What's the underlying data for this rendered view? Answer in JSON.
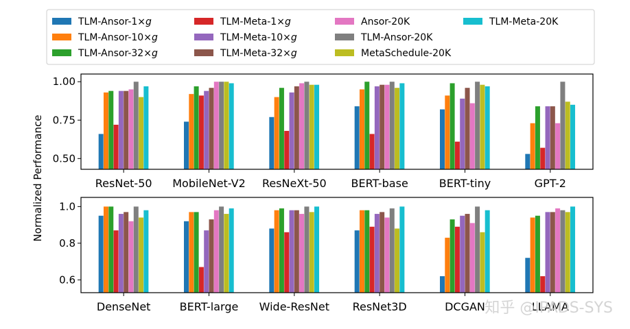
{
  "ylabel": "Normalized Performance",
  "watermark": "知乎 @IPADS-SYS",
  "colors": {
    "TLM-Ansor-1×g": "#1f77b4",
    "TLM-Ansor-10×g": "#ff7f0e",
    "TLM-Ansor-32×g": "#2ca02c",
    "TLM-Meta-1×g": "#d62728",
    "TLM-Meta-10×g": "#9467bd",
    "TLM-Meta-32×g": "#8c564b",
    "Ansor-20K": "#e377c2",
    "TLM-Ansor-20K": "#7f7f7f",
    "MetaSchedule-20K": "#bcbd22",
    "TLM-Meta-20K": "#17becf"
  },
  "legend": [
    {
      "prefix": "TLM-Ansor-1×",
      "italic": "g",
      "key": "TLM-Ansor-1×g"
    },
    {
      "prefix": "TLM-Ansor-10×",
      "italic": "g",
      "key": "TLM-Ansor-10×g"
    },
    {
      "prefix": "TLM-Ansor-32×",
      "italic": "g",
      "key": "TLM-Ansor-32×g"
    },
    {
      "prefix": "TLM-Meta-1×",
      "italic": "g",
      "key": "TLM-Meta-1×g"
    },
    {
      "prefix": "TLM-Meta-10×",
      "italic": "g",
      "key": "TLM-Meta-10×g"
    },
    {
      "prefix": "TLM-Meta-32×",
      "italic": "g",
      "key": "TLM-Meta-32×g"
    },
    {
      "prefix": "Ansor-20K",
      "italic": "",
      "key": "Ansor-20K"
    },
    {
      "prefix": "TLM-Ansor-20K",
      "italic": "",
      "key": "TLM-Ansor-20K"
    },
    {
      "prefix": "MetaSchedule-20K",
      "italic": "",
      "key": "MetaSchedule-20K"
    },
    {
      "prefix": "TLM-Meta-20K",
      "italic": "",
      "key": "TLM-Meta-20K"
    }
  ],
  "chart_data": [
    {
      "type": "bar",
      "title": "",
      "xlabel": "",
      "ylabel": "Normalized Performance",
      "ylim": [
        0.43,
        1.05
      ],
      "yticks": [
        0.5,
        0.75,
        1.0
      ],
      "ytick_labels": [
        "0.50",
        "0.75",
        "1.00"
      ],
      "categories": [
        "ResNet-50",
        "MobileNet-V2",
        "ResNeXt-50",
        "BERT-base",
        "BERT-tiny",
        "GPT-2"
      ],
      "series": [
        {
          "name": "TLM-Ansor-1×g",
          "values": [
            0.66,
            0.74,
            0.77,
            0.84,
            0.82,
            0.53
          ]
        },
        {
          "name": "TLM-Ansor-10×g",
          "values": [
            0.93,
            0.92,
            0.9,
            0.95,
            0.91,
            0.73
          ]
        },
        {
          "name": "TLM-Ansor-32×g",
          "values": [
            0.94,
            0.97,
            0.96,
            1.0,
            0.99,
            0.84
          ]
        },
        {
          "name": "TLM-Meta-1×g",
          "values": [
            0.72,
            0.91,
            0.68,
            0.66,
            0.61,
            0.57
          ]
        },
        {
          "name": "TLM-Meta-10×g",
          "values": [
            0.94,
            0.94,
            0.93,
            0.97,
            0.89,
            0.84
          ]
        },
        {
          "name": "TLM-Meta-32×g",
          "values": [
            0.94,
            0.96,
            0.97,
            0.98,
            0.96,
            0.84
          ]
        },
        {
          "name": "Ansor-20K",
          "values": [
            0.95,
            1.0,
            0.99,
            0.98,
            0.86,
            0.73
          ]
        },
        {
          "name": "TLM-Ansor-20K",
          "values": [
            1.0,
            1.0,
            1.0,
            1.0,
            1.0,
            1.0
          ]
        },
        {
          "name": "MetaSchedule-20K",
          "values": [
            0.9,
            1.0,
            0.98,
            0.96,
            0.98,
            0.87
          ]
        },
        {
          "name": "TLM-Meta-20K",
          "values": [
            0.97,
            0.99,
            0.98,
            0.99,
            0.97,
            0.85
          ]
        }
      ]
    },
    {
      "type": "bar",
      "title": "",
      "xlabel": "",
      "ylabel": "Normalized Performance",
      "ylim": [
        0.53,
        1.05
      ],
      "yticks": [
        0.6,
        0.8,
        1.0
      ],
      "ytick_labels": [
        "0.6",
        "0.8",
        "1.0"
      ],
      "categories": [
        "DenseNet",
        "BERT-large",
        "Wide-ResNet",
        "ResNet3D",
        "DCGAN",
        "LLAMA"
      ],
      "series": [
        {
          "name": "TLM-Ansor-1×g",
          "values": [
            0.95,
            0.92,
            0.88,
            0.87,
            0.62,
            0.72
          ]
        },
        {
          "name": "TLM-Ansor-10×g",
          "values": [
            1.0,
            0.97,
            0.98,
            0.98,
            0.83,
            0.94
          ]
        },
        {
          "name": "TLM-Ansor-32×g",
          "values": [
            1.0,
            0.97,
            0.99,
            0.98,
            0.93,
            0.95
          ]
        },
        {
          "name": "TLM-Meta-1×g",
          "values": [
            0.87,
            0.67,
            0.86,
            0.89,
            0.89,
            0.62
          ]
        },
        {
          "name": "TLM-Meta-10×g",
          "values": [
            0.96,
            0.87,
            0.98,
            0.96,
            0.95,
            0.97
          ]
        },
        {
          "name": "TLM-Meta-32×g",
          "values": [
            0.97,
            0.93,
            0.98,
            0.97,
            0.96,
            0.97
          ]
        },
        {
          "name": "Ansor-20K",
          "values": [
            0.92,
            0.98,
            0.96,
            0.94,
            0.91,
            0.99
          ]
        },
        {
          "name": "TLM-Ansor-20K",
          "values": [
            1.0,
            1.0,
            1.0,
            0.99,
            1.0,
            0.98
          ]
        },
        {
          "name": "MetaSchedule-20K",
          "values": [
            0.94,
            0.96,
            0.97,
            0.88,
            0.86,
            0.97
          ]
        },
        {
          "name": "TLM-Meta-20K",
          "values": [
            0.98,
            0.99,
            1.0,
            1.0,
            0.98,
            1.0
          ]
        }
      ]
    }
  ]
}
